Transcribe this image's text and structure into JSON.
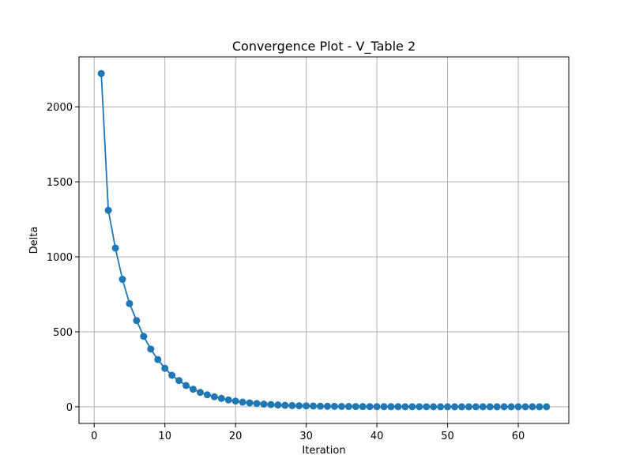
{
  "chart_data": {
    "type": "line",
    "title": "Convergence Plot - V_Table 2",
    "xlabel": "Iteration",
    "ylabel": "Delta",
    "xlim": [
      -2.15,
      67.15
    ],
    "ylim": [
      -111,
      2333
    ],
    "xticks": [
      0,
      10,
      20,
      30,
      40,
      50,
      60
    ],
    "yticks": [
      0,
      500,
      1000,
      1500,
      2000
    ],
    "grid": true,
    "marker": "circle",
    "color": "#1f77b4",
    "series": [
      {
        "x": [
          1,
          2,
          3,
          4,
          5,
          6,
          7,
          8,
          9,
          10,
          11,
          12,
          13,
          14,
          15,
          16,
          17,
          18,
          19,
          20,
          21,
          22,
          23,
          24,
          25,
          26,
          27,
          28,
          29,
          30,
          31,
          32,
          33,
          34,
          35,
          36,
          37,
          38,
          39,
          40,
          41,
          42,
          43,
          44,
          45,
          46,
          47,
          48,
          49,
          50,
          51,
          52,
          53,
          54,
          55,
          56,
          57,
          58,
          59,
          60,
          61,
          62,
          63,
          64
        ],
        "y": [
          2222,
          1310,
          1058,
          850,
          688,
          575,
          470,
          385,
          315,
          257,
          210,
          175,
          142,
          117,
          96,
          80,
          67,
          56,
          46,
          38,
          31,
          26,
          22,
          18,
          15,
          12,
          10,
          8,
          7,
          6,
          5,
          4,
          3.5,
          3,
          2.5,
          2,
          1.7,
          1.4,
          1.2,
          1,
          0.8,
          0.7,
          0.6,
          0.5,
          0.4,
          0.35,
          0.3,
          0.25,
          0.2,
          0.17,
          0.14,
          0.12,
          0.1,
          0.08,
          0.07,
          0.06,
          0.05,
          0.04,
          0.035,
          0.03,
          0.025,
          0.02,
          0.017,
          0.015
        ]
      }
    ]
  }
}
